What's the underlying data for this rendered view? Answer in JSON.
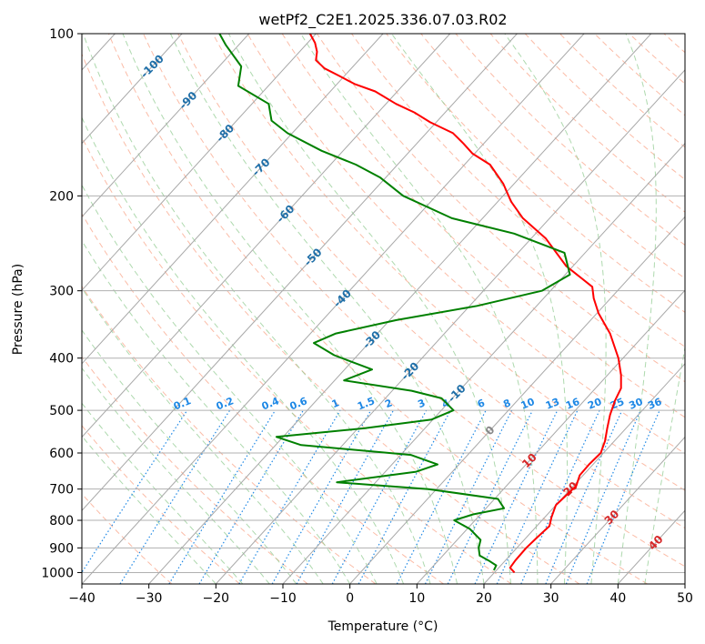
{
  "chart_data": {
    "type": "line",
    "title": "wetPf2_C2E1.2025.336.07.03.R02",
    "xlabel": "Temperature (°C)",
    "ylabel": "Pressure (hPa)",
    "xlim": [
      -40,
      50
    ],
    "ylim": [
      1050,
      100
    ],
    "y_scale": "log",
    "skew": "skew-T",
    "grid": true,
    "x_ticks": [
      "−40",
      "−30",
      "−20",
      "−10",
      "0",
      "10",
      "20",
      "30",
      "40",
      "50"
    ],
    "y_ticks": [
      "100",
      "200",
      "300",
      "400",
      "500",
      "600",
      "700",
      "800",
      "900",
      "1000"
    ],
    "series": [
      {
        "color": "#ff0000",
        "points": [
          [
            23.0,
            1000
          ],
          [
            21.7,
            980
          ],
          [
            21.5,
            950
          ],
          [
            21.4,
            900
          ],
          [
            21.6,
            860
          ],
          [
            21.9,
            820
          ],
          [
            21.0,
            790
          ],
          [
            20.0,
            750
          ],
          [
            20.2,
            720
          ],
          [
            20.4,
            690
          ],
          [
            19.5,
            660
          ],
          [
            19.4,
            630
          ],
          [
            19.6,
            600
          ],
          [
            18.6,
            570
          ],
          [
            17.2,
            540
          ],
          [
            15.8,
            510
          ],
          [
            14.6,
            480
          ],
          [
            13.8,
            455
          ],
          [
            12.0,
            430
          ],
          [
            9.3,
            400
          ],
          [
            4.7,
            360
          ],
          [
            0.2,
            330
          ],
          [
            -2.5,
            310
          ],
          [
            -4.3,
            295
          ],
          [
            -11.0,
            270
          ],
          [
            -17.8,
            240
          ],
          [
            -24.0,
            220
          ],
          [
            -28.0,
            205
          ],
          [
            -31.6,
            190
          ],
          [
            -36.2,
            175
          ],
          [
            -40.3,
            167
          ],
          [
            -43.0,
            160
          ],
          [
            -46.0,
            153
          ],
          [
            -50.9,
            146
          ],
          [
            -54.6,
            140
          ],
          [
            -58.5,
            135
          ],
          [
            -63.3,
            128
          ],
          [
            -67.4,
            124
          ],
          [
            -70.6,
            120
          ],
          [
            -74.0,
            116
          ],
          [
            -76.4,
            112
          ],
          [
            -77.4,
            108
          ],
          [
            -78.9,
            104
          ],
          [
            -80.9,
            100
          ]
        ]
      },
      {
        "color": "#008000",
        "points": [
          [
            19.6,
            990
          ],
          [
            19.3,
            970
          ],
          [
            17.5,
            950
          ],
          [
            15.5,
            930
          ],
          [
            14.3,
            900
          ],
          [
            13.5,
            870
          ],
          [
            10.4,
            830
          ],
          [
            6.9,
            800
          ],
          [
            8.9,
            780
          ],
          [
            12.7,
            760
          ],
          [
            10.5,
            730
          ],
          [
            -1.2,
            700
          ],
          [
            -15.8,
            680
          ],
          [
            -5.4,
            650
          ],
          [
            -3.2,
            630
          ],
          [
            -8.5,
            605
          ],
          [
            -26.2,
            580
          ],
          [
            -31.0,
            560
          ],
          [
            -19.1,
            540
          ],
          [
            -10.2,
            520
          ],
          [
            -8.2,
            500
          ],
          [
            -11.6,
            475
          ],
          [
            -17.1,
            460
          ],
          [
            -28.6,
            440
          ],
          [
            -25.9,
            420
          ],
          [
            -33.5,
            395
          ],
          [
            -38.2,
            375
          ],
          [
            -36.2,
            360
          ],
          [
            -29.0,
            340
          ],
          [
            -18.9,
            320
          ],
          [
            -11.3,
            300
          ],
          [
            -9.3,
            280
          ],
          [
            -13.1,
            255
          ],
          [
            -23.2,
            235
          ],
          [
            -34.6,
            220
          ],
          [
            -44.9,
            200
          ],
          [
            -50.8,
            185
          ],
          [
            -56.2,
            175
          ],
          [
            -63.2,
            165
          ],
          [
            -70.7,
            153
          ],
          [
            -74.8,
            145
          ],
          [
            -77.5,
            135
          ],
          [
            -84.5,
            125
          ],
          [
            -86.7,
            115
          ],
          [
            -91.9,
            105
          ],
          [
            -94.4,
            100
          ]
        ]
      }
    ],
    "isotherm_labels": [
      "-100",
      "-90",
      "-80",
      "-70",
      "-60",
      "-50",
      "-40",
      "-30",
      "-20",
      "-10",
      "0",
      "10",
      "20",
      "30",
      "40"
    ],
    "mixing_ratio_labels": [
      "0.1",
      "0.2",
      "0.4",
      "0.6",
      "1",
      "1.5",
      "2",
      "3",
      "4",
      "6",
      "8",
      "10",
      "13",
      "16",
      "20",
      "25",
      "30",
      "36"
    ]
  }
}
